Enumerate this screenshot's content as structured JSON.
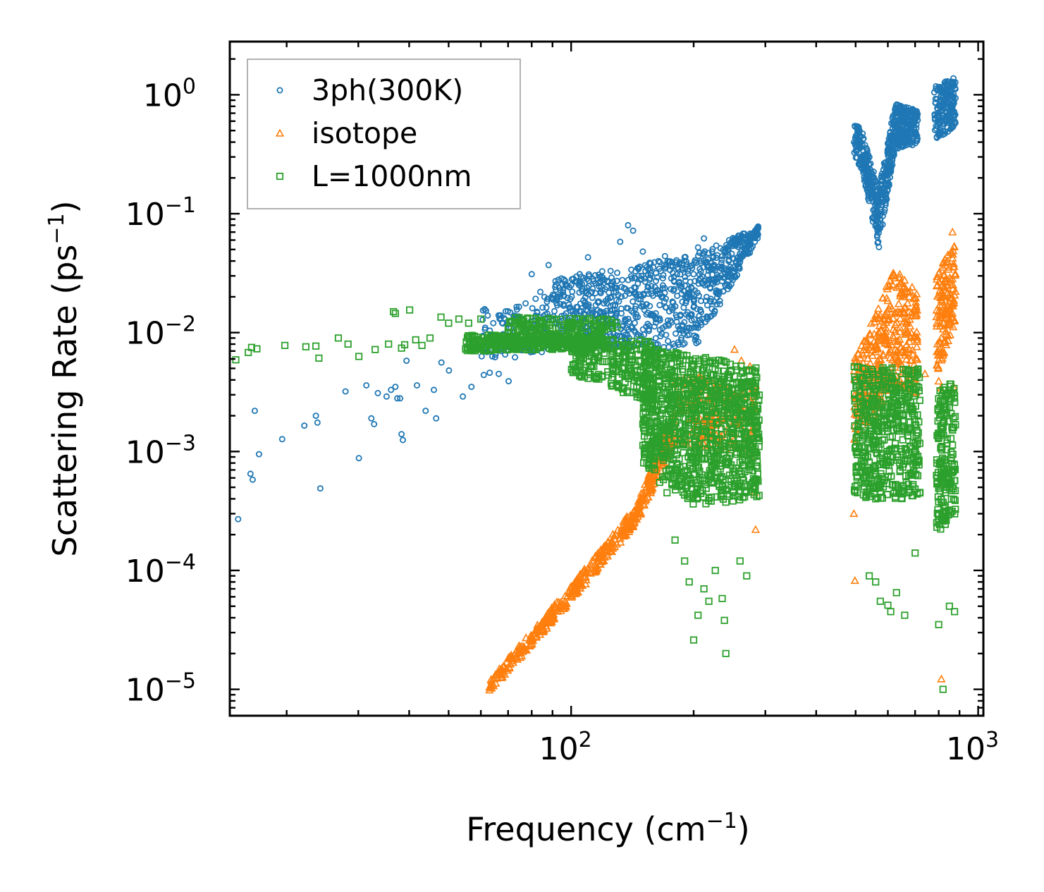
{
  "chart_data": {
    "type": "scatter",
    "title": "",
    "xlabel": "Frequency (cm",
    "xlabel_sup": "−1",
    "xlabel_end": ")",
    "ylabel": "Scattering Rate (ps",
    "ylabel_sup": "−1",
    "ylabel_end": ")",
    "xscale": "log",
    "yscale": "log",
    "xlim": [
      14.5,
      1030
    ],
    "ylim": [
      6e-06,
      2.8
    ],
    "grid": false,
    "legend_position": "top-left",
    "x_ticks": [
      {
        "value": 100,
        "base": "10",
        "exp": "2"
      },
      {
        "value": 1000,
        "base": "10",
        "exp": "3"
      }
    ],
    "y_ticks": [
      {
        "value": 1,
        "base": "10",
        "exp": "0"
      },
      {
        "value": 0.1,
        "base": "10",
        "exp": "−1"
      },
      {
        "value": 0.01,
        "base": "10",
        "exp": "−2"
      },
      {
        "value": 0.001,
        "base": "10",
        "exp": "−3"
      },
      {
        "value": 0.0001,
        "base": "10",
        "exp": "−4"
      },
      {
        "value": 1e-05,
        "base": "10",
        "exp": "−5"
      }
    ],
    "series": [
      {
        "name": "3ph(300K)",
        "marker": "circle",
        "color": "#1f77b4",
        "points": [
          [
            15.2,
            0.00027
          ],
          [
            16.3,
            0.00065
          ],
          [
            16.5,
            0.00058
          ],
          [
            16.7,
            0.0022
          ],
          [
            17.1,
            0.00095
          ],
          [
            19.5,
            0.00127
          ],
          [
            22.1,
            0.00165
          ],
          [
            23.6,
            0.002
          ],
          [
            23.8,
            0.00175
          ],
          [
            24.2,
            0.00049
          ],
          [
            27.9,
            0.0032
          ],
          [
            30.1,
            0.00088
          ],
          [
            31.4,
            0.0036
          ],
          [
            32.3,
            0.0019
          ],
          [
            32.8,
            0.0017
          ],
          [
            33.5,
            0.0031
          ],
          [
            35.2,
            0.0029
          ],
          [
            36.1,
            0.0033
          ],
          [
            37.0,
            0.0035
          ],
          [
            37.4,
            0.0028
          ],
          [
            38.0,
            0.0028
          ],
          [
            38.3,
            0.0014
          ],
          [
            38.6,
            0.00125
          ],
          [
            39.4,
            0.0058
          ],
          [
            41.8,
            0.0036
          ],
          [
            43.9,
            0.0022
          ],
          [
            46.0,
            0.0033
          ],
          [
            46.6,
            0.0019
          ],
          [
            48.0,
            0.0056
          ],
          [
            50.1,
            0.0048
          ],
          [
            54.2,
            0.0029
          ],
          [
            56.9,
            0.0035
          ],
          [
            61.0,
            0.0044
          ],
          [
            63.1,
            0.0046
          ],
          [
            66.4,
            0.0045
          ],
          [
            70.2,
            0.0039
          ],
          [
            72.8,
            0.0062
          ],
          [
            78.0,
            0.0075
          ],
          [
            80.0,
            0.031
          ],
          [
            84.0,
            0.022
          ],
          [
            88.0,
            0.037
          ],
          [
            92.0,
            0.019
          ],
          [
            96.0,
            0.028
          ],
          [
            100.0,
            0.025
          ],
          [
            105.0,
            0.031
          ],
          [
            110.0,
            0.043
          ],
          [
            118.0,
            0.027
          ],
          [
            125.0,
            0.033
          ],
          [
            132.0,
            0.058
          ],
          [
            138.0,
            0.08
          ],
          [
            142.0,
            0.072
          ],
          [
            150.0,
            0.048
          ],
          [
            160.0,
            0.039
          ],
          [
            170.0,
            0.044
          ],
          [
            182.0,
            0.031
          ],
          [
            196.0,
            0.036
          ],
          [
            205.0,
            0.052
          ],
          [
            212.0,
            0.062
          ],
          [
            222.0,
            0.048
          ],
          [
            235.0,
            0.044
          ],
          [
            248.0,
            0.046
          ],
          [
            262.0,
            0.058
          ],
          [
            278.0,
            0.068
          ],
          [
            288.0,
            0.078
          ]
        ],
        "bands": [
          {
            "x_start": 60,
            "x_end": 90,
            "y_low_start": 0.006,
            "y_low_end": 0.007,
            "y_high_start": 0.016,
            "y_high_end": 0.021,
            "count": 140
          },
          {
            "x_start": 90,
            "x_end": 200,
            "y_low_start": 0.007,
            "y_low_end": 0.0075,
            "y_high_start": 0.028,
            "y_high_end": 0.045,
            "count": 600
          },
          {
            "x_start": 200,
            "x_end": 290,
            "y_low_start": 0.0072,
            "y_low_end": 0.062,
            "y_high_start": 0.045,
            "y_high_end": 0.078,
            "count": 300
          },
          {
            "x_start": 495,
            "x_end": 520,
            "y_low_start": 0.3,
            "y_low_end": 0.22,
            "y_high_start": 0.62,
            "y_high_end": 0.48,
            "count": 60
          },
          {
            "x_start": 520,
            "x_end": 570,
            "y_low_start": 0.22,
            "y_low_end": 0.05,
            "y_high_start": 0.48,
            "y_high_end": 0.16,
            "count": 160
          },
          {
            "x_start": 570,
            "x_end": 625,
            "y_low_start": 0.05,
            "y_low_end": 0.35,
            "y_high_start": 0.16,
            "y_high_end": 0.85,
            "count": 170
          },
          {
            "x_start": 625,
            "x_end": 710,
            "y_low_start": 0.35,
            "y_low_end": 0.38,
            "y_high_start": 0.85,
            "y_high_end": 0.75,
            "count": 200
          },
          {
            "x_start": 780,
            "x_end": 880,
            "y_low_start": 0.4,
            "y_low_end": 0.55,
            "y_high_start": 1.2,
            "y_high_end": 1.4,
            "count": 200
          }
        ]
      },
      {
        "name": "isotope",
        "marker": "triangle",
        "color": "#ff7f0e",
        "points": [
          [
            252.0,
            0.0072
          ],
          [
            262.0,
            0.0058
          ],
          [
            275.0,
            0.0052
          ],
          [
            282.0,
            0.00045
          ],
          [
            284.0,
            0.00022
          ],
          [
            495.0,
            0.0003
          ],
          [
            498.0,
            8.2e-05
          ],
          [
            740.0,
            0.0045
          ],
          [
            800.0,
            0.0039
          ],
          [
            810.0,
            0.0034
          ],
          [
            812.0,
            1.22e-05
          ],
          [
            870.0,
            0.0035
          ],
          [
            865.0,
            0.07
          ]
        ],
        "bands": [
          {
            "x_start": 63,
            "x_end": 100,
            "y_low_start": 9.5e-06,
            "y_low_end": 5.5e-05,
            "y_high_start": 1.2e-05,
            "y_high_end": 7.5e-05,
            "count": 180
          },
          {
            "x_start": 100,
            "x_end": 145,
            "y_low_start": 5.5e-05,
            "y_low_end": 0.00025,
            "y_high_start": 7.5e-05,
            "y_high_end": 0.00036,
            "count": 180
          },
          {
            "x_start": 145,
            "x_end": 180,
            "y_low_start": 0.00025,
            "y_low_end": 0.0012,
            "y_high_start": 0.00036,
            "y_high_end": 0.0022,
            "count": 140
          },
          {
            "x_start": 180,
            "x_end": 285,
            "y_low_start": 0.0012,
            "y_low_end": 0.0009,
            "y_high_start": 0.0045,
            "y_high_end": 0.0038,
            "count": 200
          },
          {
            "x_start": 495,
            "x_end": 560,
            "y_low_start": 0.0012,
            "y_low_end": 0.002,
            "y_high_start": 0.0065,
            "y_high_end": 0.014,
            "count": 120
          },
          {
            "x_start": 560,
            "x_end": 620,
            "y_low_start": 0.002,
            "y_low_end": 0.0035,
            "y_high_start": 0.014,
            "y_high_end": 0.035,
            "count": 120
          },
          {
            "x_start": 620,
            "x_end": 710,
            "y_low_start": 0.0035,
            "y_low_end": 0.003,
            "y_high_start": 0.035,
            "y_high_end": 0.022,
            "count": 150
          },
          {
            "x_start": 790,
            "x_end": 880,
            "y_low_start": 0.0045,
            "y_low_end": 0.012,
            "y_high_start": 0.03,
            "y_high_end": 0.065,
            "count": 150
          }
        ]
      },
      {
        "name": "L=1000nm",
        "marker": "square",
        "color": "#2ca02c",
        "points": [
          [
            15.0,
            0.0059
          ],
          [
            16.1,
            0.0068
          ],
          [
            16.4,
            0.0075
          ],
          [
            16.9,
            0.0073
          ],
          [
            19.8,
            0.0078
          ],
          [
            22.3,
            0.0076
          ],
          [
            23.6,
            0.0077
          ],
          [
            24.0,
            0.0061
          ],
          [
            26.8,
            0.009
          ],
          [
            28.3,
            0.008
          ],
          [
            30.1,
            0.0063
          ],
          [
            33.0,
            0.0072
          ],
          [
            35.6,
            0.008
          ],
          [
            36.6,
            0.015
          ],
          [
            37.0,
            0.0145
          ],
          [
            38.3,
            0.0074
          ],
          [
            39.0,
            0.0079
          ],
          [
            40.1,
            0.0155
          ],
          [
            41.5,
            0.0087
          ],
          [
            43.0,
            0.0078
          ],
          [
            45.0,
            0.009
          ],
          [
            47.9,
            0.0135
          ],
          [
            50.0,
            0.012
          ],
          [
            53.0,
            0.013
          ],
          [
            56.0,
            0.012
          ],
          [
            60.0,
            0.013
          ],
          [
            150.0,
            0.0017
          ],
          [
            165.0,
            0.00055
          ],
          [
            172.0,
            0.00045
          ],
          [
            180.0,
            0.00018
          ],
          [
            190.0,
            0.00012
          ],
          [
            195.0,
            8e-05
          ],
          [
            200.0,
            2.6e-05
          ],
          [
            205.0,
            4.2e-05
          ],
          [
            212.0,
            7e-05
          ],
          [
            218.0,
            5.5e-05
          ],
          [
            226.0,
            0.0001
          ],
          [
            235.0,
            5.8e-05
          ],
          [
            238.0,
            3.8e-05
          ],
          [
            240.0,
            2e-05
          ],
          [
            260.0,
            0.00012
          ],
          [
            270.0,
            9e-05
          ],
          [
            540.0,
            9e-05
          ],
          [
            560.0,
            8e-05
          ],
          [
            575.0,
            5.5e-05
          ],
          [
            600.0,
            5.1e-05
          ],
          [
            610.0,
            4.5e-05
          ],
          [
            630.0,
            6.5e-05
          ],
          [
            660.0,
            4.2e-05
          ],
          [
            700.0,
            0.00014
          ],
          [
            800.0,
            3.5e-05
          ],
          [
            820.0,
            1e-05
          ],
          [
            850.0,
            5e-05
          ],
          [
            875.0,
            4.5e-05
          ]
        ],
        "bands": [
          {
            "x_start": 55,
            "x_end": 120,
            "y_low_start": 0.007,
            "y_low_end": 0.0072,
            "y_high_start": 0.0095,
            "y_high_end": 0.0098,
            "count": 380
          },
          {
            "x_start": 70,
            "x_end": 130,
            "y_low_start": 0.0098,
            "y_low_end": 0.0105,
            "y_high_start": 0.0135,
            "y_high_end": 0.013,
            "count": 120
          },
          {
            "x_start": 100,
            "x_end": 160,
            "y_low_start": 0.0045,
            "y_low_end": 0.0025,
            "y_high_start": 0.0095,
            "y_high_end": 0.0085,
            "count": 260
          },
          {
            "x_start": 150,
            "x_end": 200,
            "y_low_start": 0.0008,
            "y_low_end": 0.00035,
            "y_high_start": 0.0075,
            "y_high_end": 0.0065,
            "count": 500
          },
          {
            "x_start": 200,
            "x_end": 290,
            "y_low_start": 0.00035,
            "y_low_end": 0.0004,
            "y_high_start": 0.0065,
            "y_high_end": 0.005,
            "count": 600
          },
          {
            "x_start": 495,
            "x_end": 720,
            "y_low_start": 0.0004,
            "y_low_end": 0.0004,
            "y_high_start": 0.0052,
            "y_high_end": 0.005,
            "count": 520
          },
          {
            "x_start": 790,
            "x_end": 880,
            "y_low_start": 0.0002,
            "y_low_end": 0.0003,
            "y_high_start": 0.0032,
            "y_high_end": 0.004,
            "count": 200
          }
        ]
      }
    ]
  }
}
